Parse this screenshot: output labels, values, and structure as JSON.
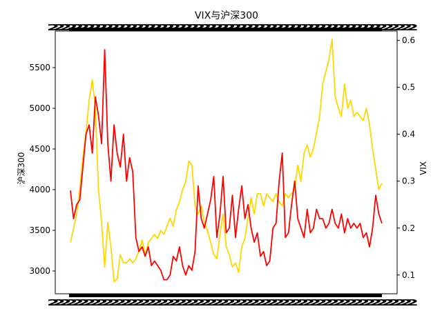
{
  "chart_data": {
    "type": "line",
    "title": "VIX与沪深300",
    "xlabel": "",
    "ylabel_left": "沪深300",
    "ylabel_right": "VIX",
    "ylim_left": [
      2720,
      5950
    ],
    "ylim_right": [
      0.06,
      0.62
    ],
    "yticks_left": [
      3000,
      3500,
      4000,
      4500,
      5000,
      5500
    ],
    "yticks_right": [
      0.1,
      0.2,
      0.3,
      0.4,
      0.5,
      0.6
    ],
    "grid": false,
    "legend": "none",
    "x_tick_labels_note": "x-axis tick labels are densely overlapping and illegible",
    "x_tick_label_text": "2",
    "x_tick_count": 60,
    "x_range": [
      0,
      100
    ],
    "series": [
      {
        "axis": "left",
        "color": "#ffd700",
        "x": [
          0,
          2,
          3,
          4,
          5,
          6,
          7,
          8,
          9,
          10,
          11,
          12,
          13,
          14,
          15,
          16,
          17,
          18,
          19,
          20,
          21,
          22,
          23,
          24,
          25,
          26,
          27,
          28,
          29,
          30,
          31,
          32,
          33,
          34,
          35,
          36,
          37,
          38,
          39,
          40,
          41,
          42,
          43,
          44,
          45,
          46,
          47,
          48,
          49,
          50,
          51,
          52,
          53,
          54,
          55,
          56,
          57,
          58,
          59,
          60,
          61,
          62,
          63,
          64,
          65,
          66,
          67,
          68,
          69,
          70,
          71,
          72,
          73,
          74,
          75,
          76,
          77,
          78,
          79,
          80,
          81,
          82,
          83,
          84,
          85,
          86,
          87,
          88,
          89,
          90,
          91,
          92,
          93,
          94,
          95,
          96,
          97,
          98,
          99,
          100
        ],
        "values": [
          3350,
          3700,
          4000,
          4400,
          4700,
          5100,
          5350,
          5000,
          4000,
          3600,
          3050,
          3600,
          3300,
          2870,
          2900,
          3200,
          3100,
          3100,
          3150,
          3100,
          3150,
          3250,
          3380,
          3200,
          3350,
          3400,
          3450,
          3400,
          3500,
          3450,
          3550,
          3650,
          3550,
          3750,
          3850,
          4000,
          4100,
          4350,
          4300,
          3800,
          3700,
          3800,
          3600,
          3500,
          3350,
          3200,
          3150,
          3450,
          3700,
          3300,
          3200,
          3050,
          3100,
          2980,
          3300,
          3400,
          3650,
          3900,
          3700,
          3950,
          3950,
          3800,
          3950,
          3900,
          3850,
          3950,
          3850,
          3800,
          3950,
          3900,
          3950,
          4000,
          4300,
          4100,
          4450,
          4550,
          4400,
          4500,
          4700,
          4900,
          5300,
          5450,
          5600,
          5850,
          5150,
          5000,
          4900,
          5300,
          5000,
          5100,
          4900,
          4950,
          4900,
          4850,
          5000,
          4800,
          4500,
          4250,
          4000,
          4080
        ]
      },
      {
        "axis": "right",
        "color": "#ff0000",
        "x": [
          0,
          1,
          2,
          3,
          4,
          5,
          6,
          7,
          8,
          9,
          10,
          11,
          12,
          13,
          14,
          15,
          16,
          17,
          18,
          19,
          20,
          21,
          22,
          23,
          24,
          25,
          26,
          27,
          28,
          29,
          30,
          31,
          32,
          33,
          34,
          35,
          36,
          37,
          38,
          39,
          40,
          41,
          42,
          43,
          44,
          45,
          46,
          47,
          48,
          49,
          50,
          51,
          52,
          53,
          54,
          55,
          56,
          57,
          58,
          59,
          60,
          61,
          62,
          63,
          64,
          65,
          66,
          67,
          68,
          69,
          70,
          71,
          72,
          73,
          74,
          75,
          76,
          77,
          78,
          79,
          80,
          81,
          82,
          83,
          84,
          85,
          86,
          87,
          88,
          89,
          90,
          91,
          92,
          93,
          94,
          95,
          96,
          97,
          98,
          99,
          100
        ],
        "values": [
          0.28,
          0.22,
          0.25,
          0.26,
          0.33,
          0.4,
          0.42,
          0.36,
          0.48,
          0.44,
          0.38,
          0.58,
          0.38,
          0.3,
          0.42,
          0.36,
          0.33,
          0.4,
          0.3,
          0.35,
          0.32,
          0.18,
          0.15,
          0.16,
          0.14,
          0.16,
          0.12,
          0.13,
          0.12,
          0.11,
          0.09,
          0.09,
          0.1,
          0.14,
          0.13,
          0.16,
          0.12,
          0.1,
          0.12,
          0.11,
          0.15,
          0.29,
          0.22,
          0.2,
          0.23,
          0.26,
          0.31,
          0.18,
          0.23,
          0.31,
          0.19,
          0.2,
          0.27,
          0.18,
          0.24,
          0.29,
          0.22,
          0.25,
          0.2,
          0.17,
          0.19,
          0.14,
          0.15,
          0.12,
          0.13,
          0.2,
          0.21,
          0.3,
          0.36,
          0.18,
          0.19,
          0.25,
          0.3,
          0.22,
          0.2,
          0.18,
          0.24,
          0.19,
          0.2,
          0.24,
          0.22,
          0.22,
          0.2,
          0.21,
          0.24,
          0.21,
          0.2,
          0.23,
          0.19,
          0.22,
          0.2,
          0.21,
          0.2,
          0.21,
          0.18,
          0.19,
          0.16,
          0.2,
          0.27,
          0.23,
          0.21
        ]
      }
    ]
  }
}
